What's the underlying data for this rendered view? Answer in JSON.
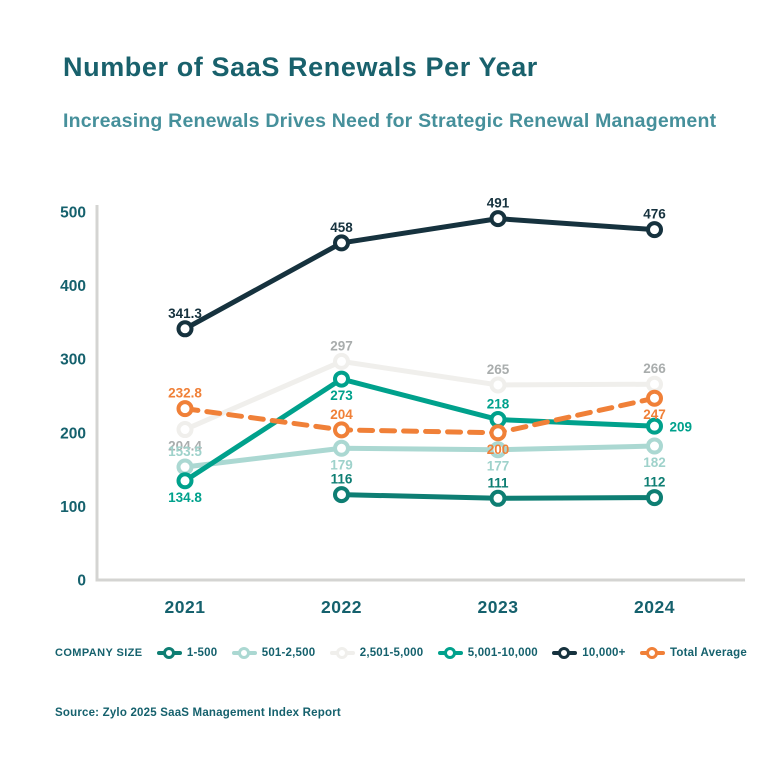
{
  "page": {
    "title": "Number of SaaS Renewals Per Year",
    "subtitle": "Increasing Renewals Drives Need for Strategic Renewal Management",
    "source": "Source: Zylo 2025 SaaS Management Index Report"
  },
  "colors": {
    "title_text": "#19616c",
    "subtitle_text": "#46909b",
    "axis_line": "#d4d4d2",
    "tick_text": "#15616d",
    "legend_text": "#15616d",
    "source_text": "#15616d"
  },
  "legend": {
    "title": "COMPANY SIZE"
  },
  "chart_data": {
    "type": "line",
    "title": "Number of SaaS Renewals Per Year",
    "x": [
      "2021",
      "2022",
      "2023",
      "2024"
    ],
    "ylim": [
      0,
      500
    ],
    "yticks": [
      0,
      100,
      200,
      300,
      400,
      500
    ],
    "grid": false,
    "legend_position": "bottom",
    "draw_order": [
      2,
      1,
      0,
      3,
      4,
      5
    ],
    "series": [
      {
        "name": "1-500",
        "color": "#0e7e73",
        "dashed": false,
        "values": [
          null,
          116,
          111,
          112
        ],
        "labels": [
          null,
          "116",
          "111",
          "112"
        ],
        "label_pos": [
          null,
          "above",
          "above",
          "above"
        ]
      },
      {
        "name": "501-2,500",
        "color": "#abd8d2",
        "label_color": "#9fd2cb",
        "dashed": false,
        "values": [
          153.5,
          179,
          177,
          182
        ],
        "labels": [
          "153.5",
          "179",
          "177",
          "182"
        ],
        "label_pos": [
          "above",
          "below",
          "below",
          "below"
        ]
      },
      {
        "name": "2,501-5,000",
        "color": "#f0efec",
        "label_color": "#a9adad",
        "dashed": false,
        "values": [
          204.4,
          297,
          265,
          266
        ],
        "labels": [
          "204.4",
          "297",
          "265",
          "266"
        ],
        "label_pos": [
          "below",
          "above",
          "above",
          "above"
        ]
      },
      {
        "name": "5,001-10,000",
        "color": "#00a18c",
        "dashed": false,
        "values": [
          134.8,
          273,
          218,
          209
        ],
        "labels": [
          "134.8",
          "273",
          "218",
          "209"
        ],
        "label_pos": [
          "below",
          "below",
          "above",
          "right"
        ]
      },
      {
        "name": "10,000+",
        "color": "#16323e",
        "dashed": false,
        "values": [
          341.3,
          458,
          491,
          476
        ],
        "labels": [
          "341.3",
          "458",
          "491",
          "476"
        ],
        "label_pos": [
          "above",
          "above",
          "above",
          "above"
        ]
      },
      {
        "name": "Total Average",
        "color": "#f08038",
        "dashed": true,
        "values": [
          232.8,
          204,
          200,
          247
        ],
        "labels": [
          "232.8",
          "204",
          "200",
          "247"
        ],
        "label_pos": [
          "above",
          "above",
          "below",
          "below"
        ]
      }
    ]
  }
}
